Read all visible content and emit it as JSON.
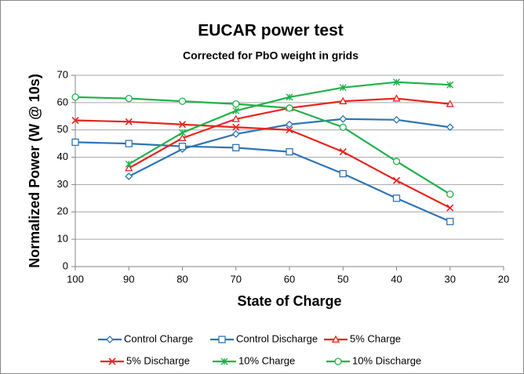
{
  "chart_data": {
    "type": "line",
    "title": "EUCAR power test",
    "subtitle": "Corrected for PbO weight in grids",
    "x_label": "State of Charge",
    "y_label": "Normalized Power (W @ 10s)",
    "x": [
      100,
      90,
      80,
      70,
      60,
      50,
      40,
      30
    ],
    "xlim": [
      100,
      20
    ],
    "xticks": [
      100,
      90,
      80,
      70,
      60,
      50,
      40,
      30,
      20
    ],
    "ylim": [
      0,
      70
    ],
    "yticks": [
      0,
      10,
      20,
      30,
      40,
      50,
      60,
      70
    ],
    "grid": true,
    "legend": "bottom",
    "series": [
      {
        "name": "Control Charge",
        "color": "#2e75b6",
        "marker": "diamond",
        "values": [
          null,
          33,
          43,
          48.5,
          52,
          54,
          53.7,
          51
        ]
      },
      {
        "name": "Control Discharge",
        "color": "#2e75b6",
        "marker": "square",
        "values": [
          45.5,
          45,
          44,
          43.5,
          42,
          34,
          25,
          16.5
        ]
      },
      {
        "name": "5% Charge",
        "color": "#e8251f",
        "marker": "triangle",
        "values": [
          null,
          36,
          47,
          54,
          58,
          60.5,
          61.5,
          59.5
        ]
      },
      {
        "name": "5% Discharge",
        "color": "#e8251f",
        "marker": "x",
        "values": [
          53.5,
          53,
          52,
          51,
          50,
          42,
          31.5,
          21.5
        ]
      },
      {
        "name": "10% Charge",
        "color": "#22b14c",
        "marker": "asterisk",
        "values": [
          null,
          37.5,
          49,
          57,
          62,
          65.5,
          67.5,
          66.5
        ]
      },
      {
        "name": "10% Discharge",
        "color": "#22b14c",
        "marker": "circle",
        "values": [
          62,
          61.5,
          60.5,
          59.5,
          58,
          51,
          38.5,
          26.5
        ]
      }
    ]
  }
}
